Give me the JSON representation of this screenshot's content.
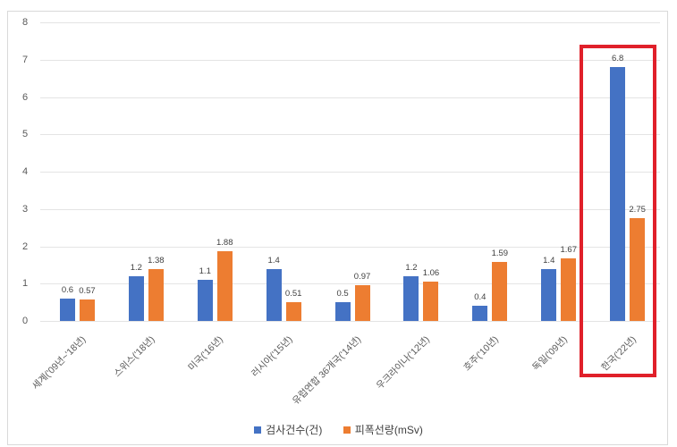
{
  "chart_data": {
    "type": "bar",
    "title": "",
    "xlabel": "",
    "ylabel": "",
    "ylim": [
      0,
      8
    ],
    "yticks": [
      "0",
      "1",
      "2",
      "3",
      "4",
      "5",
      "6",
      "7",
      "8"
    ],
    "grid": true,
    "legend_position": "bottom",
    "categories": [
      "세계('09년~'18년)",
      "스위스('18년)",
      "미국('16년)",
      "러시아('15년)",
      "유럽연합 36개국('14년)",
      "우크라이나('12년)",
      "호주('10년)",
      "독일('09년)",
      "한국('22년)"
    ],
    "series": [
      {
        "name": "검사건수(건)",
        "color": "#4472C4",
        "values": [
          0.6,
          1.2,
          1.1,
          1.4,
          0.5,
          1.2,
          0.4,
          1.4,
          6.8
        ],
        "labels": [
          "0.6",
          "1.2",
          "1.1",
          "1.4",
          "0.5",
          "1.2",
          "0.4",
          "1.4",
          "6.8"
        ]
      },
      {
        "name": "피폭선량(mSv)",
        "color": "#ED7D31",
        "values": [
          0.57,
          1.38,
          1.88,
          0.51,
          0.97,
          1.06,
          1.59,
          1.67,
          2.75
        ],
        "labels": [
          "0.57",
          "1.38",
          "1.88",
          "0.51",
          "0.97",
          "1.06",
          "1.59",
          "1.67",
          "2.75"
        ]
      }
    ],
    "annotations": [
      {
        "type": "highlight-box",
        "target_category": "한국('22년)",
        "color": "#E0202A"
      }
    ]
  },
  "legend": {
    "items": [
      {
        "label": "검사건수(건)",
        "color": "#4472C4"
      },
      {
        "label": "피폭선량(mSv)",
        "color": "#ED7D31"
      }
    ]
  }
}
